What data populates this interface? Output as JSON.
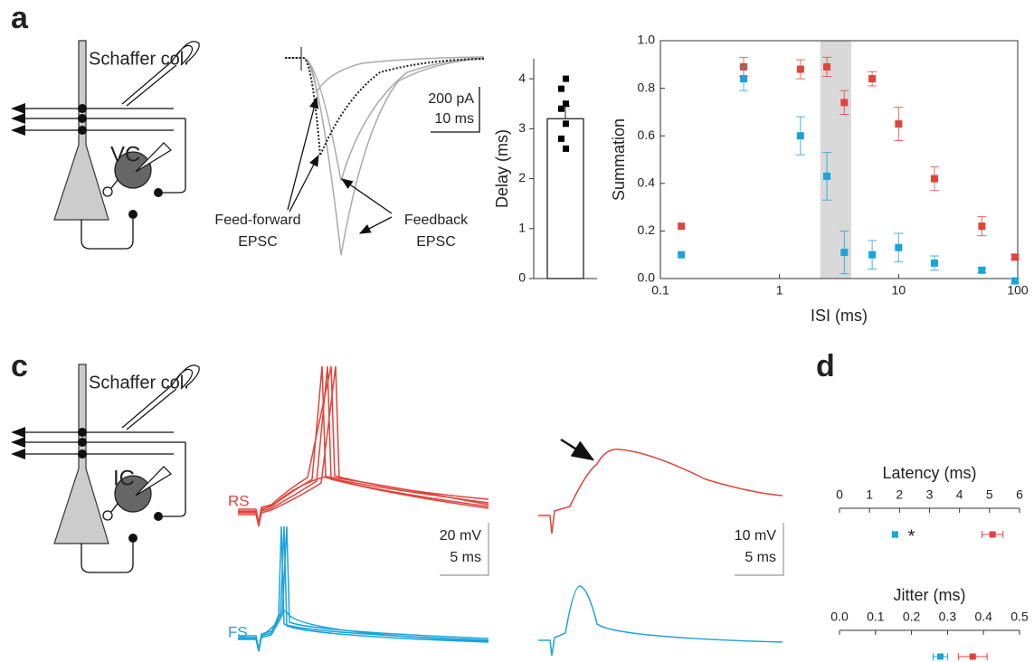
{
  "panel_labels": [
    "a",
    "c",
    "d"
  ],
  "diagram_a": {
    "input_label": "Schaffer col.",
    "cell_label": "VC"
  },
  "diagram_c": {
    "input_label": "Schaffer col.",
    "cell_label": "IC"
  },
  "traces_a": {
    "scale_y": "200 pA",
    "scale_x": "10 ms",
    "feedforward_label": [
      "Feed-forward",
      "EPSC"
    ],
    "feedback_label": [
      "Feedback",
      "EPSC"
    ]
  },
  "traces_c": {
    "rs_label": "RS",
    "fs_label": "FS",
    "scale_left": [
      "20 mV",
      "5 ms"
    ],
    "scale_right": [
      "10 mV",
      "5 ms"
    ]
  },
  "chart_data": [
    {
      "type": "bar",
      "ylabel": "Delay (ms)",
      "values": [
        3.2
      ],
      "errors": [
        0.25
      ],
      "points": [
        4.0,
        3.8,
        3.5,
        3.4,
        3.1,
        2.8,
        2.6
      ],
      "color": "#ffffff",
      "point_color": "#000000",
      "ylim": [
        0,
        4.4
      ],
      "yticks": [
        0,
        1,
        2,
        3,
        4
      ]
    },
    {
      "type": "scatter",
      "xlabel": "ISI (ms)",
      "ylabel": "Summation",
      "log_x": true,
      "xlim": [
        0.1,
        100
      ],
      "xticks": [
        0.1,
        1,
        10,
        100
      ],
      "ylim": [
        0,
        1
      ],
      "yticks": [
        {
          "value": 0,
          "label": "0.0"
        },
        0.2,
        0.4,
        0.6,
        0.8,
        {
          "value": 1,
          "label": "1.0"
        }
      ],
      "shaded_range": [
        2.2,
        4
      ],
      "series": [
        {
          "color": "#e0443a",
          "x": [
            0.15,
            0.5,
            1.5,
            2.5,
            3.5,
            6,
            10,
            20,
            50,
            95
          ],
          "values": [
            0.22,
            0.89,
            0.88,
            0.89,
            0.74,
            0.84,
            0.65,
            0.42,
            0.22,
            0.09
          ],
          "errors": [
            0,
            0.04,
            0.04,
            0.04,
            0.05,
            0.03,
            0.07,
            0.05,
            0.04,
            0.01
          ]
        },
        {
          "color": "#1ba3dc",
          "x": [
            0.15,
            0.5,
            1.5,
            2.5,
            3.5,
            6,
            10,
            20,
            50,
            95
          ],
          "values": [
            0.1,
            0.84,
            0.6,
            0.43,
            0.11,
            0.1,
            0.13,
            0.065,
            0.035,
            -0.01
          ],
          "errors": [
            0,
            0.05,
            0.08,
            0.1,
            0.09,
            0.06,
            0.06,
            0.03,
            0.01,
            0.01
          ]
        }
      ]
    },
    {
      "type": "dot",
      "title": "Latency (ms)",
      "xlim": [
        0,
        6
      ],
      "xticks": [
        0,
        1,
        2,
        3,
        4,
        5,
        6
      ],
      "annotation": "*",
      "series": [
        {
          "color": "#1ba3dc",
          "values": [
            1.85
          ],
          "errors": [
            0.08
          ]
        },
        {
          "color": "#e0443a",
          "values": [
            5.1
          ],
          "errors": [
            0.35
          ]
        }
      ]
    },
    {
      "type": "dot",
      "title": "Jitter (ms)",
      "xlim": [
        0,
        0.5
      ],
      "xticks": [
        {
          "value": 0,
          "label": "0.0"
        },
        0.1,
        0.2,
        0.3,
        0.4,
        0.5
      ],
      "series": [
        {
          "color": "#1ba3dc",
          "values": [
            0.28
          ],
          "errors": [
            0.02
          ]
        },
        {
          "color": "#e0443a",
          "values": [
            0.37
          ],
          "errors": [
            0.04
          ]
        }
      ]
    }
  ]
}
